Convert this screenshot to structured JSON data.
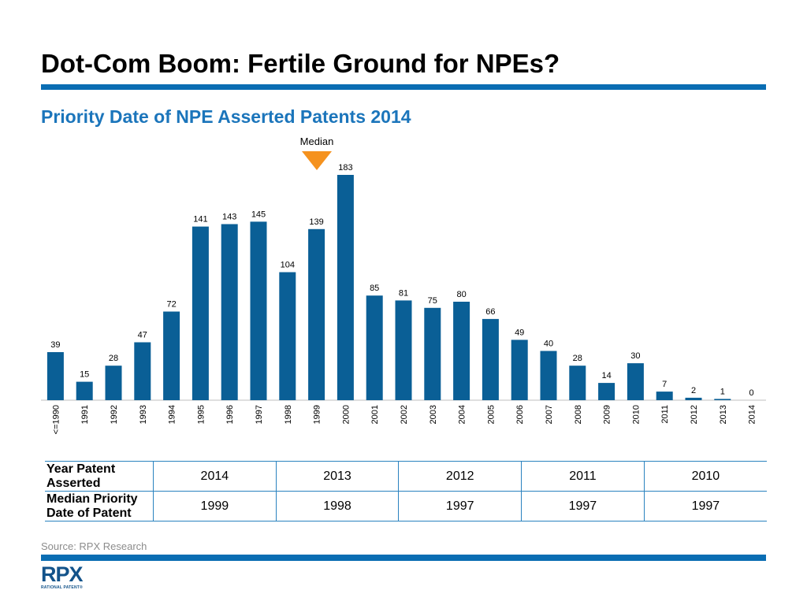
{
  "header": {
    "title": "Dot-Com Boom: Fertile Ground for NPEs?"
  },
  "chart_data": {
    "type": "bar",
    "title": "Priority Date of NPE Asserted Patents 2014",
    "categories": [
      "<=1990",
      "1991",
      "1992",
      "1993",
      "1994",
      "1995",
      "1996",
      "1997",
      "1998",
      "1999",
      "2000",
      "2001",
      "2002",
      "2003",
      "2004",
      "2005",
      "2006",
      "2007",
      "2008",
      "2009",
      "2010",
      "2011",
      "2012",
      "2013",
      "2014"
    ],
    "values": [
      39,
      15,
      28,
      47,
      72,
      141,
      143,
      145,
      104,
      139,
      183,
      85,
      81,
      75,
      80,
      66,
      49,
      40,
      28,
      14,
      30,
      7,
      2,
      1,
      0
    ],
    "bar_color": "#0a5f96",
    "ylim": [
      0,
      183
    ],
    "grid": false,
    "data_labels": true,
    "annotation": {
      "label": "Median",
      "category": "1999",
      "color": "#f5921e"
    }
  },
  "table": {
    "rows": [
      {
        "header": [
          "Year Patent",
          "Asserted"
        ],
        "values": [
          "2014",
          "2013",
          "2012",
          "2011",
          "2010"
        ]
      },
      {
        "header": [
          "Median Priority",
          "Date of Patent"
        ],
        "values": [
          "1999",
          "1998",
          "1997",
          "1997",
          "1997"
        ]
      }
    ]
  },
  "footer": {
    "source": "Source: RPX Research",
    "logo_text": "RPX",
    "logo_subtext": "RATIONAL PATENT®"
  },
  "colors": {
    "accent": "#0a6db3",
    "subtitle": "#1b75bb",
    "median_marker": "#f5921e"
  }
}
